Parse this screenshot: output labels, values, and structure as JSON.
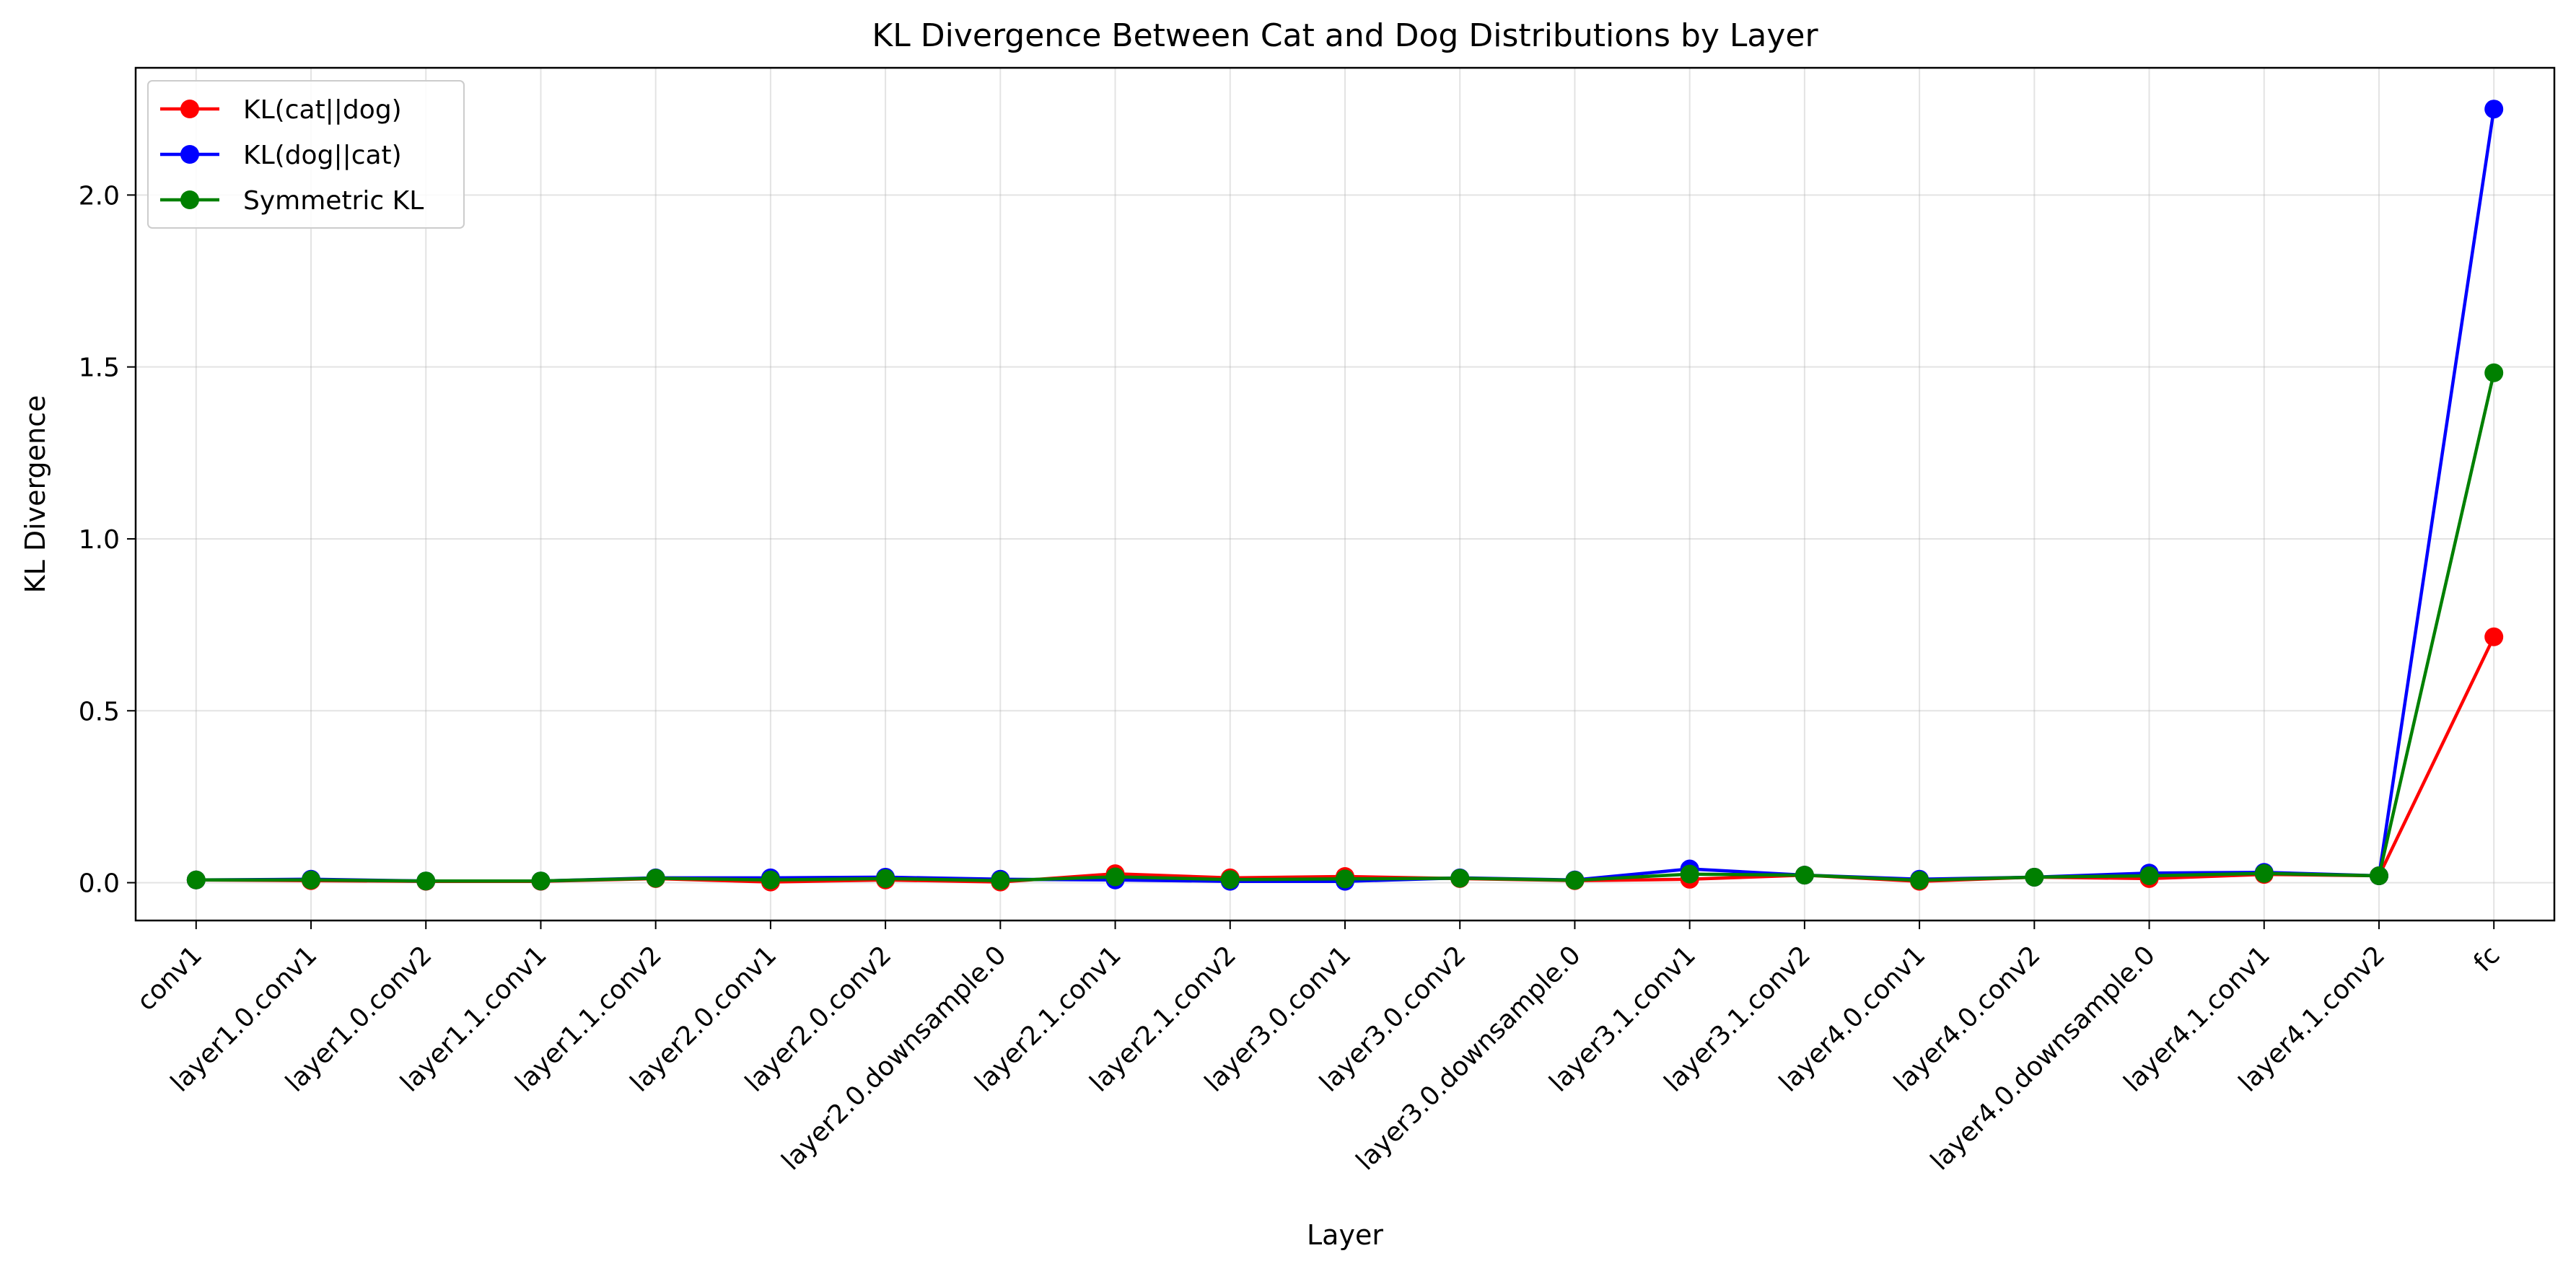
{
  "chart_data": {
    "type": "line",
    "title": "KL Divergence Between Cat and Dog Distributions by Layer",
    "xlabel": "Layer",
    "ylabel": "KL Divergence",
    "categories": [
      "conv1",
      "layer1.0.conv1",
      "layer1.0.conv2",
      "layer1.1.conv1",
      "layer1.1.conv2",
      "layer2.0.conv1",
      "layer2.0.conv2",
      "layer2.0.downsample.0",
      "layer2.1.conv1",
      "layer2.1.conv2",
      "layer3.0.conv1",
      "layer3.0.conv2",
      "layer3.0.downsample.0",
      "layer3.1.conv1",
      "layer3.1.conv2",
      "layer4.0.conv1",
      "layer4.0.conv2",
      "layer4.0.downsample.0",
      "layer4.1.conv1",
      "layer4.1.conv2",
      "fc"
    ],
    "ylim": [
      -0.11,
      2.37
    ],
    "yticks": [
      0.0,
      0.5,
      1.0,
      1.5,
      2.0
    ],
    "ytick_labels": [
      "0.0",
      "0.5",
      "1.0",
      "1.5",
      "2.0"
    ],
    "grid": true,
    "legend_position": "top-left",
    "series": [
      {
        "name": "KL(cat||dog)",
        "color": "#ff0000",
        "values": [
          0.008,
          0.006,
          0.004,
          0.004,
          0.012,
          0.002,
          0.008,
          0.002,
          0.026,
          0.014,
          0.018,
          0.012,
          0.006,
          0.01,
          0.022,
          0.004,
          0.016,
          0.012,
          0.024,
          0.02,
          0.715
        ]
      },
      {
        "name": "KL(dog||cat)",
        "color": "#0000ff",
        "values": [
          0.008,
          0.01,
          0.005,
          0.005,
          0.014,
          0.014,
          0.016,
          0.01,
          0.008,
          0.004,
          0.004,
          0.014,
          0.008,
          0.04,
          0.022,
          0.01,
          0.016,
          0.028,
          0.03,
          0.02,
          2.25
        ]
      },
      {
        "name": "Symmetric KL",
        "color": "#008000",
        "values": [
          0.008,
          0.008,
          0.005,
          0.005,
          0.013,
          0.008,
          0.012,
          0.006,
          0.017,
          0.009,
          0.011,
          0.013,
          0.007,
          0.025,
          0.022,
          0.007,
          0.016,
          0.02,
          0.027,
          0.02,
          1.483
        ]
      }
    ]
  }
}
